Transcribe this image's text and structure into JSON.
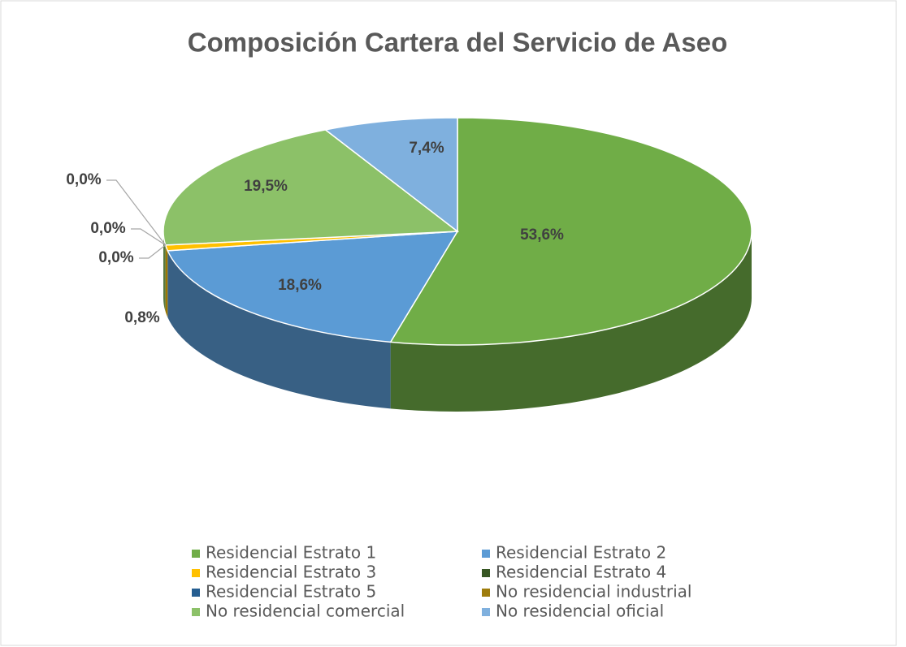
{
  "chart_data": {
    "type": "pie",
    "title": "Composición Cartera del Servicio de Aseo",
    "categories": [
      "Residencial Estrato 1",
      "Residencial Estrato 2",
      "Residencial Estrato 3",
      "Residencial Estrato 4",
      "Residencial Estrato 5",
      "No residencial industrial",
      "No residencial comercial",
      "No residencial oficial"
    ],
    "values": [
      53.6,
      18.6,
      0.8,
      0.0,
      0.0,
      0.0,
      19.5,
      7.4
    ],
    "value_labels": [
      "53,6%",
      "18,6%",
      "0,8%",
      "0,0%",
      "0,0%",
      "0,0%",
      "19,5%",
      "7,4%"
    ],
    "colors": [
      "#70ad47",
      "#5b9bd5",
      "#ffc000",
      "#375623",
      "#255e91",
      "#9e7c0c",
      "#8cc168",
      "#7fb0de"
    ],
    "legend": "bottom"
  }
}
